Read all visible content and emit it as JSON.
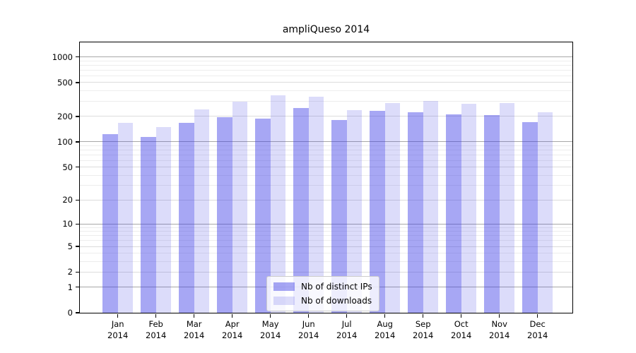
{
  "chart_data": {
    "type": "bar",
    "title": "ampliQueso 2014",
    "year_label": "2014",
    "categories": [
      "Jan",
      "Feb",
      "Mar",
      "Apr",
      "May",
      "Jun",
      "Jul",
      "Aug",
      "Sep",
      "Oct",
      "Nov",
      "Dec"
    ],
    "series": [
      {
        "name": "Nb of distinct IPs",
        "color": "rgba(60,60,230,0.45)",
        "values": [
          124,
          115,
          168,
          195,
          190,
          253,
          182,
          232,
          223,
          212,
          209,
          172
        ]
      },
      {
        "name": "Nb of downloads",
        "color": "rgba(60,60,230,0.18)",
        "values": [
          168,
          150,
          243,
          298,
          355,
          340,
          236,
          289,
          305,
          284,
          288,
          224
        ]
      }
    ],
    "y_axis": {
      "scale": "log1p",
      "tick_values": [
        1000,
        500,
        200,
        100,
        50,
        20,
        10,
        5,
        2,
        1,
        0
      ],
      "max_log": 3.1716
    },
    "x_axis": {
      "tick_labels_line2": "2014"
    },
    "legend": {
      "position": "lower-center",
      "entries": [
        "Nb of distinct IPs",
        "Nb of downloads"
      ]
    },
    "grid": {
      "on": true,
      "minor_values": [
        3,
        4,
        6,
        7,
        8,
        9,
        30,
        40,
        60,
        70,
        80,
        90,
        300,
        400,
        600,
        700,
        800,
        900
      ],
      "labeled_values": [
        2,
        5,
        20,
        50,
        200,
        500
      ],
      "power_values": [
        1,
        10,
        100,
        1000
      ],
      "minor_color": "#ededed",
      "labeled_color": "#dcdcdc",
      "power_color": "#a8a8a8"
    },
    "colors": {
      "bar_ips": "rgba(60,60,230,0.45)",
      "bar_downloads": "rgba(60,60,230,0.18)"
    }
  }
}
